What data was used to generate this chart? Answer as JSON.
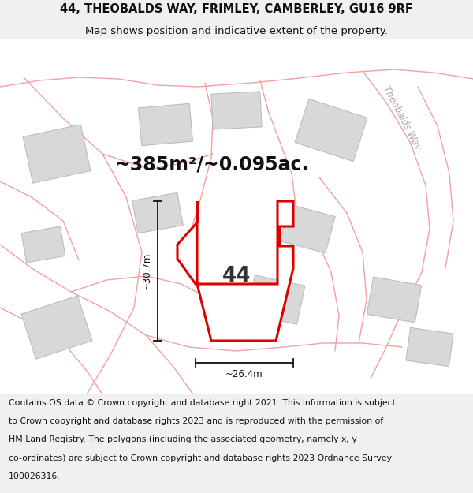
{
  "title_line1": "44, THEOBALDS WAY, FRIMLEY, CAMBERLEY, GU16 9RF",
  "title_line2": "Map shows position and indicative extent of the property.",
  "footer_lines": [
    "Contains OS data © Crown copyright and database right 2021. This information is subject",
    "to Crown copyright and database rights 2023 and is reproduced with the permission of",
    "HM Land Registry. The polygons (including the associated geometry, namely x, y",
    "co-ordinates) are subject to Crown copyright and database rights 2023 Ordnance Survey",
    "100026316."
  ],
  "area_label": "~385m²/~0.095ac.",
  "number_label": "44",
  "dim_h_label": "~26.4m",
  "dim_v_label": "~30.7m",
  "road_label": "Theobalds Way",
  "bg_color": "#f0f0f0",
  "map_bg": "#ffffff",
  "plot_edge_color": "#dd0000",
  "plot_fill_color": "#ffffff",
  "nearby_fill": "#d8d8d8",
  "nearby_edge": "#b8b8b8",
  "road_color": "#f2a0a0",
  "dim_color": "#111111",
  "title_fontsize": 10.5,
  "subtitle_fontsize": 9.5,
  "footer_fontsize": 7.8,
  "area_fontsize": 17,
  "number_fontsize": 19,
  "road_label_fontsize": 8.5,
  "road_lw": 1.0,
  "plot_lw": 2.2
}
